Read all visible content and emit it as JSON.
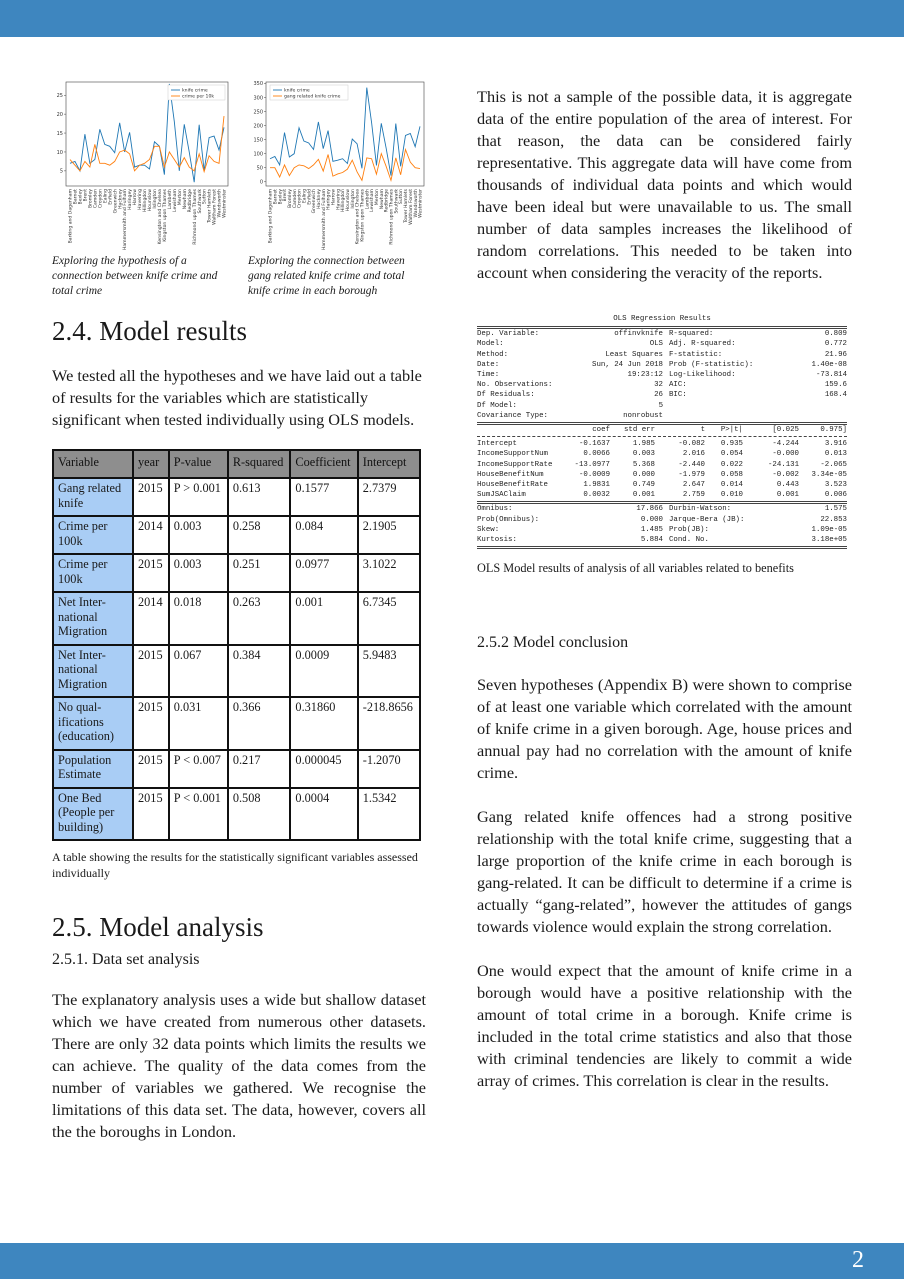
{
  "page_number": "2",
  "colors": {
    "bar": "#3e86bf",
    "knife": "#1f77b4",
    "other": "#ff7f0e",
    "header_cell": "#8e8e8e",
    "variable_cell": "#a9cdf5"
  },
  "figures": [
    {
      "caption": "Exploring the hypothesis of a connection between knife crime and total crime"
    },
    {
      "caption": "Exploring the connection between gang related knife crime and total knife crime in each borough"
    }
  ],
  "chart_data": [
    {
      "type": "line",
      "ylim": [
        1,
        28.5
      ],
      "yticks": [
        5,
        10,
        15,
        20,
        25
      ],
      "legend_position": "top-right",
      "categories": [
        "Barking and Dagenham",
        "Barnet",
        "Bexley",
        "Brent",
        "Bromley",
        "Camden",
        "Croydon",
        "Ealing",
        "Enfield",
        "Greenwich",
        "Hackney",
        "Hammersmith and Fulham",
        "Haringey",
        "Harrow",
        "Havering",
        "Hillingdon",
        "Hounslow",
        "Islington",
        "Kensington and Chelsea",
        "Kingston upon Thames",
        "Lambeth",
        "Lewisham",
        "Merton",
        "Newham",
        "Redbridge",
        "Richmond upon Thames",
        "Southwark",
        "Sutton",
        "Tower Hamlets",
        "Waltham Forest",
        "Wandsworth",
        "Westminster"
      ],
      "series": [
        {
          "name": "knife crime",
          "values": [
            7,
            7.5,
            5,
            14.7,
            7,
            8,
            16,
            12,
            11.5,
            9.8,
            17.7,
            10,
            15.2,
            6,
            6.5,
            6.5,
            5.5,
            12.7,
            11.5,
            4,
            28,
            18,
            5,
            17.3,
            10,
            2,
            17.2,
            5,
            13.8,
            14.2,
            10.5,
            16.5
          ]
        },
        {
          "name": "crime per 10k",
          "values": [
            8,
            6.5,
            5,
            7.5,
            6,
            12,
            7,
            7,
            6.5,
            7.5,
            10,
            10.5,
            9.5,
            5,
            6.5,
            7,
            8,
            11.5,
            11.5,
            6,
            10,
            8,
            6,
            8.5,
            6,
            5,
            9.5,
            4.8,
            9,
            7.5,
            7,
            19.5
          ]
        }
      ]
    },
    {
      "type": "line",
      "ylim": [
        -15,
        355
      ],
      "yticks": [
        0,
        50,
        100,
        150,
        200,
        250,
        300,
        350
      ],
      "legend_position": "top-left",
      "categories": [
        "Barking and Dagenham",
        "Barnet",
        "Bexley",
        "Brent",
        "Bromley",
        "Camden",
        "Croydon",
        "Ealing",
        "Enfield",
        "Greenwich",
        "Hackney",
        "Hammersmith and Fulham",
        "Haringey",
        "Harrow",
        "Havering",
        "Hillingdon",
        "Hounslow",
        "Islington",
        "Kensington and Chelsea",
        "Kingston upon Thames",
        "Lambeth",
        "Lewisham",
        "Merton",
        "Newham",
        "Redbridge",
        "Richmond upon Thames",
        "Southwark",
        "Sutton",
        "Tower Hamlets",
        "Waltham Forest",
        "Wandsworth",
        "Westminster"
      ],
      "series": [
        {
          "name": "knife crime",
          "values": [
            82,
            90,
            60,
            175,
            88,
            100,
            192,
            145,
            138,
            115,
            213,
            118,
            182,
            73,
            77,
            82,
            65,
            152,
            135,
            48,
            335,
            210,
            58,
            208,
            120,
            22,
            207,
            55,
            165,
            172,
            125,
            197
          ]
        },
        {
          "name": "gang related knife crime",
          "values": [
            50,
            50,
            17,
            60,
            22,
            50,
            60,
            57,
            47,
            60,
            80,
            38,
            97,
            20,
            28,
            33,
            45,
            77,
            35,
            5,
            85,
            82,
            27,
            100,
            55,
            5,
            85,
            25,
            115,
            70,
            50,
            47
          ]
        }
      ]
    }
  ],
  "section_24": {
    "heading": "2.4. Model results",
    "text": "We tested all the hypotheses and we have laid out a table of results for the variables which are statistically significant when tested individually using OLS models.",
    "table": {
      "headers": [
        "Variable",
        "year",
        "P-value",
        "R-squared",
        "Coefficient",
        "Intercept"
      ],
      "rows": [
        [
          "Gang related knife",
          "2015",
          "P > 0.001",
          "0.613",
          "0.1577",
          "2.7379"
        ],
        [
          "Crime per 100k",
          "2014",
          "0.003",
          "0.258",
          "0.084",
          "2.1905"
        ],
        [
          "Crime per 100k",
          "2015",
          "0.003",
          "0.251",
          "0.0977",
          "3.1022"
        ],
        [
          "Net Inter-national Migration",
          "2014",
          "0.018",
          "0.263",
          "0.001",
          "6.7345"
        ],
        [
          "Net Inter-national Migration",
          "2015",
          "0.067",
          "0.384",
          "0.0009",
          "5.9483"
        ],
        [
          "No qual-ifications (education)",
          "2015",
          "0.031",
          "0.366",
          "0.31860",
          "-218.8656"
        ],
        [
          "Population Estimate",
          "2015",
          "P < 0.007",
          "0.217",
          "0.000045",
          "-1.2070"
        ],
        [
          "One Bed (People per building)",
          "2015",
          "P < 0.001",
          "0.508",
          "0.0004",
          "1.5342"
        ]
      ],
      "caption": "A table showing the results for the statistically significant variables assessed individually"
    }
  },
  "section_25": {
    "heading": "2.5. Model analysis",
    "sub": "2.5.1. Data set analysis",
    "text": "The explanatory analysis uses a wide but shallow dataset which we have created from numerous other datasets. There are only 32 data points which limits the results we can achieve. The quality of the data comes from the number of variables we gathered. We recognise the limitations of this data set. The data, however, covers all the the boroughs in London."
  },
  "right_intro": "This is not a sample of the possible data, it is aggregate data of the entire population of the area of interest. For that reason, the data can be considered fairly representative. This aggregate data will have come from thousands of individual data points and which would have been ideal but were unavailable to us. The small number of data samples increases the likelihood of random correlations. This needed to be taken into account when considering the veracity of the reports.",
  "ols": {
    "title": "OLS Regression Results",
    "summary": [
      [
        "Dep. Variable:",
        "offinvknife",
        "R-squared:",
        "0.809"
      ],
      [
        "Model:",
        "OLS",
        "Adj. R-squared:",
        "0.772"
      ],
      [
        "Method:",
        "Least Squares",
        "F-statistic:",
        "21.96"
      ],
      [
        "Date:",
        "Sun, 24 Jun 2018",
        "Prob (F-statistic):",
        "1.40e-08"
      ],
      [
        "Time:",
        "19:23:12",
        "Log-Likelihood:",
        "-73.814"
      ],
      [
        "No. Observations:",
        "32",
        "AIC:",
        "159.6"
      ],
      [
        "Df Residuals:",
        "26",
        "BIC:",
        "168.4"
      ],
      [
        "Df Model:",
        "5",
        "",
        ""
      ],
      [
        "Covariance Type:",
        "nonrobust",
        "",
        ""
      ]
    ],
    "coef_headers": [
      "",
      "coef",
      "std err",
      "t",
      "P>|t|",
      "[0.025",
      "0.975]"
    ],
    "coefs": [
      [
        "Intercept",
        "-0.1637",
        "1.985",
        "-0.082",
        "0.935",
        "-4.244",
        "3.916"
      ],
      [
        "IncomeSupportNum",
        "0.0066",
        "0.003",
        "2.016",
        "0.054",
        "-0.000",
        "0.013"
      ],
      [
        "IncomeSupportRate",
        "-13.0977",
        "5.368",
        "-2.440",
        "0.022",
        "-24.131",
        "-2.065"
      ],
      [
        "HouseBenefitNum",
        "-0.0009",
        "0.000",
        "-1.979",
        "0.058",
        "-0.002",
        "3.34e-05"
      ],
      [
        "HouseBenefitRate",
        "1.9831",
        "0.749",
        "2.647",
        "0.014",
        "0.443",
        "3.523"
      ],
      [
        "SumJSAClaim",
        "0.0032",
        "0.001",
        "2.759",
        "0.010",
        "0.001",
        "0.006"
      ]
    ],
    "diagnostics": [
      [
        "Omnibus:",
        "17.866",
        "Durbin-Watson:",
        "1.575"
      ],
      [
        "Prob(Omnibus):",
        "0.000",
        "Jarque-Bera (JB):",
        "22.853"
      ],
      [
        "Skew:",
        "1.485",
        "Prob(JB):",
        "1.09e-05"
      ],
      [
        "Kurtosis:",
        "5.884",
        "Cond. No.",
        "3.18e+05"
      ]
    ],
    "caption": "OLS Model results of analysis of all variables related to benefits"
  },
  "section_252": {
    "heading": "2.5.2 Model conclusion",
    "paragraphs": [
      "Seven hypotheses (Appendix B) were shown to comprise of at least one variable which correlated with the amount of knife crime in a given borough. Age, house prices and annual pay had no correlation with the amount of knife crime.",
      "Gang related knife offences had a strong positive relationship with the total knife crime, suggesting that a large proportion of the knife crime in each borough is gang-related. It can be difficult to determine if a crime is actually “gang-related”, however the attitudes of gangs towards violence would explain the strong correlation.",
      "One would expect that the amount of knife crime in a borough would have a positive relationship with the amount of total crime in a borough. Knife crime is included in the total crime statistics and also that those with criminal tendencies are likely to commit a wide array of crimes. This correlation is clear in the results."
    ]
  }
}
